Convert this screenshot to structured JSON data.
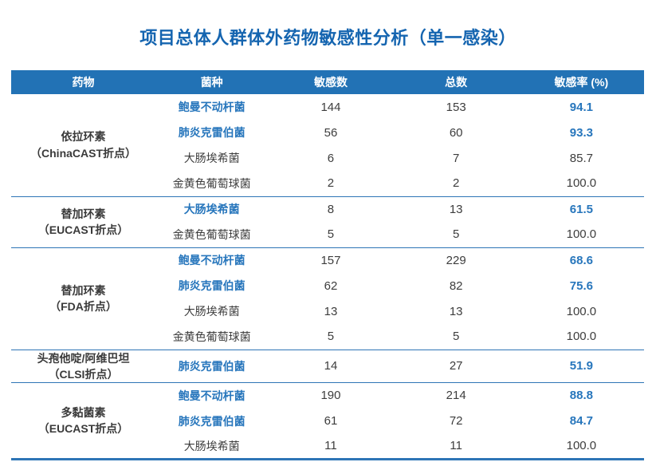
{
  "title": "项目总体人群体外药物敏感性分析（单一感染）",
  "colors": {
    "title_blue": "#1565B0",
    "header_bg": "#2272B5",
    "highlight_blue": "#2776BC",
    "dark_text": "#3D3D3D",
    "divider_blue": "#2E75B6"
  },
  "table": {
    "headers": [
      "药物",
      "菌种",
      "敏感数",
      "总数",
      "敏感率 (%)"
    ],
    "groups": [
      {
        "drug": "依拉环素",
        "breakpoint": "（ChinaCAST折点）",
        "rows": [
          {
            "species": "鲍曼不动杆菌",
            "sensitive": "144",
            "total": "153",
            "rate": "94.1",
            "highlight": true
          },
          {
            "species": "肺炎克雷伯菌",
            "sensitive": "56",
            "total": "60",
            "rate": "93.3",
            "highlight": true
          },
          {
            "species": "大肠埃希菌",
            "sensitive": "6",
            "total": "7",
            "rate": "85.7",
            "highlight": false
          },
          {
            "species": "金黄色葡萄球菌",
            "sensitive": "2",
            "total": "2",
            "rate": "100.0",
            "highlight": false
          }
        ]
      },
      {
        "drug": "替加环素",
        "breakpoint": "（EUCAST折点）",
        "rows": [
          {
            "species": "大肠埃希菌",
            "sensitive": "8",
            "total": "13",
            "rate": "61.5",
            "highlight": true
          },
          {
            "species": "金黄色葡萄球菌",
            "sensitive": "5",
            "total": "5",
            "rate": "100.0",
            "highlight": false
          }
        ]
      },
      {
        "drug": "替加环素",
        "breakpoint": "（FDA折点）",
        "rows": [
          {
            "species": "鲍曼不动杆菌",
            "sensitive": "157",
            "total": "229",
            "rate": "68.6",
            "highlight": true
          },
          {
            "species": "肺炎克雷伯菌",
            "sensitive": "62",
            "total": "82",
            "rate": "75.6",
            "highlight": true
          },
          {
            "species": "大肠埃希菌",
            "sensitive": "13",
            "total": "13",
            "rate": "100.0",
            "highlight": false
          },
          {
            "species": "金黄色葡萄球菌",
            "sensitive": "5",
            "total": "5",
            "rate": "100.0",
            "highlight": false
          }
        ]
      },
      {
        "drug": "头孢他啶/阿维巴坦",
        "breakpoint": "（CLSI折点）",
        "rows": [
          {
            "species": "肺炎克雷伯菌",
            "sensitive": "14",
            "total": "27",
            "rate": "51.9",
            "highlight": true
          }
        ]
      },
      {
        "drug": "多黏菌素",
        "breakpoint": "（EUCAST折点）",
        "rows": [
          {
            "species": "鲍曼不动杆菌",
            "sensitive": "190",
            "total": "214",
            "rate": "88.8",
            "highlight": true
          },
          {
            "species": "肺炎克雷伯菌",
            "sensitive": "61",
            "total": "72",
            "rate": "84.7",
            "highlight": true
          },
          {
            "species": "大肠埃希菌",
            "sensitive": "11",
            "total": "11",
            "rate": "100.0",
            "highlight": false
          }
        ]
      }
    ]
  }
}
